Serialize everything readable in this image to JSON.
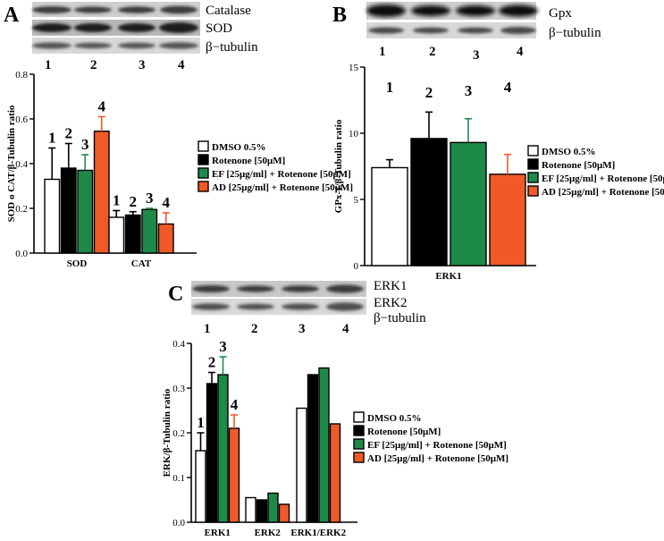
{
  "legend": [
    {
      "label": "DMSO 0.5%",
      "color": "#ffffff"
    },
    {
      "label": "Rotenone [50μM]",
      "color": "#000000"
    },
    {
      "label": "EF [25μg/ml] + Rotenone [50μM]",
      "color": "#1e8a4a"
    },
    {
      "label": "AD [25μg/ml] + Rotenone [50μM]",
      "color": "#f05a28"
    }
  ],
  "chart_data": [
    {
      "panel": "A",
      "type": "bar",
      "blot_labels": [
        "Catalase",
        "SOD",
        "β−tubulin"
      ],
      "lane_numbers": [
        "1",
        "2",
        "3",
        "4"
      ],
      "ylabel": "SOD o CAT/β-Tubulin ratio",
      "ylim": [
        0,
        0.8
      ],
      "yticks": [
        "0.0",
        "0.2",
        "0.4",
        "0.6",
        "0.8"
      ],
      "categories": [
        "SOD",
        "CAT"
      ],
      "bar_numbers": [
        [
          "1",
          "2",
          "3",
          "4"
        ],
        [
          "1",
          "2",
          "3",
          "4"
        ]
      ],
      "series": [
        {
          "values": [
            0.33,
            0.16
          ],
          "errors": [
            0.14,
            0.03
          ]
        },
        {
          "values": [
            0.38,
            0.17
          ],
          "errors": [
            0.11,
            0.015
          ]
        },
        {
          "values": [
            0.37,
            0.195
          ],
          "errors": [
            0.07,
            0.005
          ]
        },
        {
          "values": [
            0.545,
            0.13
          ],
          "errors": [
            0.065,
            0.05
          ]
        }
      ]
    },
    {
      "panel": "B",
      "type": "bar",
      "blot_labels": [
        "Gpx",
        "β−tubulin"
      ],
      "lane_numbers": [
        "1",
        "2",
        "3",
        "4"
      ],
      "ylabel": "GPx-1/β-Tubulin ratio",
      "ylim": [
        0,
        15
      ],
      "yticks": [
        "0",
        "5",
        "10",
        "15"
      ],
      "categories": [
        "ERK1"
      ],
      "bar_numbers": [
        [
          "1",
          "2",
          "3",
          "4"
        ]
      ],
      "series": [
        {
          "values": [
            7.4
          ],
          "errors": [
            0.6
          ]
        },
        {
          "values": [
            9.6
          ],
          "errors": [
            2.0
          ]
        },
        {
          "values": [
            9.3
          ],
          "errors": [
            1.8
          ]
        },
        {
          "values": [
            6.9
          ],
          "errors": [
            1.5
          ]
        }
      ]
    },
    {
      "panel": "C",
      "type": "bar",
      "blot_labels": [
        "ERK1",
        "ERK2",
        "β−tubulin"
      ],
      "lane_numbers": [
        "1",
        "2",
        "3",
        "4"
      ],
      "ylabel": "ERK/β-Tubulin ratio",
      "ylim": [
        0,
        0.4
      ],
      "yticks": [
        "0.0",
        "0.1",
        "0.2",
        "0.3",
        "0.4"
      ],
      "categories": [
        "ERK1",
        "ERK2",
        "ERK1/ERK2"
      ],
      "bar_numbers": [
        [
          "1",
          "2",
          "3",
          "4"
        ],
        [],
        []
      ],
      "series": [
        {
          "values": [
            0.16,
            0.055,
            0.255
          ],
          "errors": [
            0.04,
            0,
            0
          ]
        },
        {
          "values": [
            0.31,
            0.05,
            0.33
          ],
          "errors": [
            0.025,
            0,
            0
          ]
        },
        {
          "values": [
            0.33,
            0.065,
            0.345
          ],
          "errors": [
            0.04,
            0,
            0
          ]
        },
        {
          "values": [
            0.21,
            0.04,
            0.22
          ],
          "errors": [
            0.03,
            0,
            0
          ]
        }
      ]
    }
  ]
}
